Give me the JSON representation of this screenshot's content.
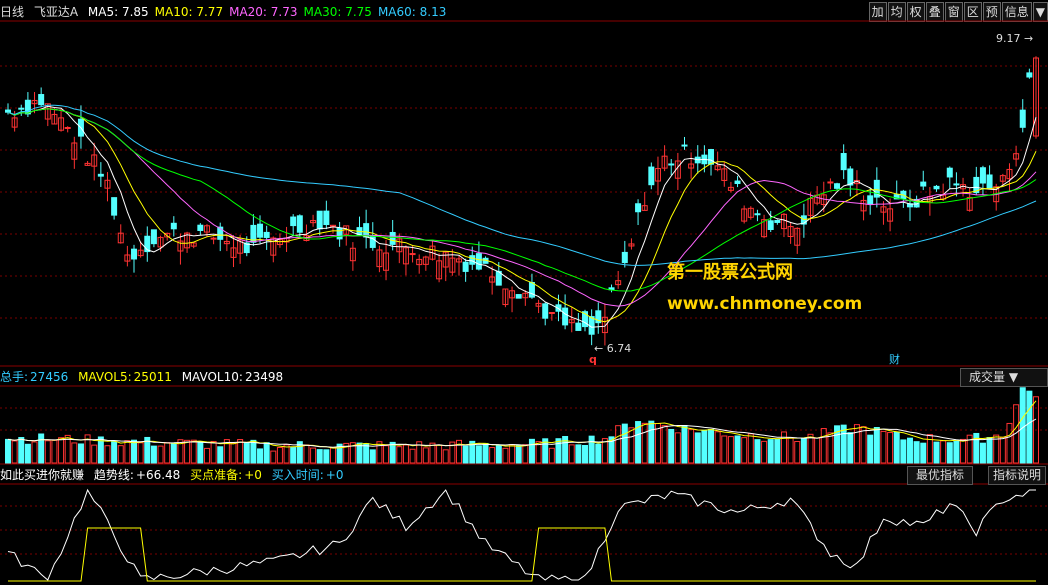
{
  "header": {
    "period": "日线",
    "stock_name": "飞亚达A",
    "ma": [
      {
        "label": "MA5:",
        "value": "7.85",
        "color": "#ffffff"
      },
      {
        "label": "MA10:",
        "value": "7.77",
        "color": "#ffff00"
      },
      {
        "label": "MA20:",
        "value": "7.73",
        "color": "#ff66ff"
      },
      {
        "label": "MA30:",
        "value": "7.75",
        "color": "#00ff00"
      },
      {
        "label": "MA60:",
        "value": "8.13",
        "color": "#33ccff"
      }
    ],
    "buttons": [
      "加",
      "均",
      "权",
      "叠",
      "窗",
      "区",
      "预",
      "信息",
      "▼"
    ]
  },
  "price": {
    "max_label": "9.17",
    "min_label": "6.74",
    "min_marker": "q",
    "fin_marker": "财"
  },
  "volume": {
    "total_label": "总手:",
    "total_value": "27456",
    "mavol5_label": "MAVOL5:",
    "mavol5_value": "25011",
    "mavol10_label": "MAVOL10:",
    "mavol10_value": "23498",
    "tab": "成交量"
  },
  "indicator": {
    "name": "如此买进你就赚",
    "trend_label": "趋势线:",
    "trend_value": "+66.48",
    "buy_prep_label": "买点准备:",
    "buy_prep_value": "+0",
    "buy_time_label": "买入时间:",
    "buy_time_value": "+0",
    "tab1": "最优指标",
    "tab2": "指标说明"
  },
  "watermark": {
    "line1": "第一股票公式网",
    "line2": "www.chnmoney.com"
  },
  "colors": {
    "up": "#ff3333",
    "down": "#54ffff",
    "grid": "#7a0000",
    "ma5": "#ffffff",
    "ma10": "#ffff00",
    "ma20": "#ff66ff",
    "ma30": "#00ff00",
    "ma60": "#33ccff"
  },
  "chart_data": {
    "type": "candlestick",
    "ylim": [
      6.6,
      9.3
    ],
    "ma_keys": [
      "ma5",
      "ma10",
      "ma20",
      "ma30",
      "ma60"
    ],
    "anchors_close": [
      [
        0,
        8.6
      ],
      [
        5,
        8.7
      ],
      [
        10,
        8.4
      ],
      [
        15,
        8.0
      ],
      [
        18,
        7.4
      ],
      [
        22,
        7.55
      ],
      [
        27,
        7.6
      ],
      [
        32,
        7.55
      ],
      [
        37,
        7.45
      ],
      [
        42,
        7.6
      ],
      [
        47,
        7.7
      ],
      [
        52,
        7.55
      ],
      [
        57,
        7.5
      ],
      [
        62,
        7.45
      ],
      [
        67,
        7.4
      ],
      [
        72,
        7.3
      ],
      [
        78,
        7.1
      ],
      [
        82,
        6.9
      ],
      [
        85,
        6.8
      ],
      [
        88,
        6.74
      ],
      [
        90,
        6.9
      ],
      [
        93,
        7.3
      ],
      [
        96,
        7.9
      ],
      [
        99,
        8.2
      ],
      [
        103,
        8.25
      ],
      [
        106,
        8.2
      ],
      [
        109,
        8.0
      ],
      [
        112,
        7.8
      ],
      [
        115,
        7.7
      ],
      [
        119,
        7.65
      ],
      [
        122,
        7.9
      ],
      [
        126,
        8.05
      ],
      [
        130,
        7.9
      ],
      [
        134,
        7.8
      ],
      [
        138,
        7.9
      ],
      [
        142,
        8.0
      ],
      [
        146,
        7.95
      ],
      [
        150,
        8.0
      ],
      [
        153,
        8.5
      ],
      [
        155,
        9.17
      ]
    ],
    "anchors_vol": [
      [
        0,
        0.3
      ],
      [
        10,
        0.28
      ],
      [
        20,
        0.25
      ],
      [
        40,
        0.2
      ],
      [
        60,
        0.2
      ],
      [
        80,
        0.22
      ],
      [
        90,
        0.3
      ],
      [
        95,
        0.55
      ],
      [
        100,
        0.45
      ],
      [
        110,
        0.35
      ],
      [
        120,
        0.3
      ],
      [
        128,
        0.45
      ],
      [
        135,
        0.3
      ],
      [
        145,
        0.28
      ],
      [
        150,
        0.35
      ],
      [
        153,
        0.95
      ],
      [
        155,
        0.9
      ]
    ],
    "anchors_ind": [
      [
        0,
        30
      ],
      [
        6,
        0
      ],
      [
        12,
        100
      ],
      [
        20,
        0
      ],
      [
        30,
        10
      ],
      [
        40,
        20
      ],
      [
        50,
        40
      ],
      [
        55,
        90
      ],
      [
        60,
        60
      ],
      [
        66,
        100
      ],
      [
        72,
        40
      ],
      [
        80,
        0
      ],
      [
        87,
        0
      ],
      [
        92,
        80
      ],
      [
        100,
        95
      ],
      [
        110,
        75
      ],
      [
        118,
        90
      ],
      [
        124,
        30
      ],
      [
        128,
        15
      ],
      [
        132,
        70
      ],
      [
        138,
        60
      ],
      [
        142,
        85
      ],
      [
        146,
        55
      ],
      [
        150,
        90
      ],
      [
        155,
        100
      ]
    ],
    "ind_high_ranges": [
      [
        12,
        20
      ],
      [
        80,
        90
      ]
    ],
    "n": 156
  }
}
